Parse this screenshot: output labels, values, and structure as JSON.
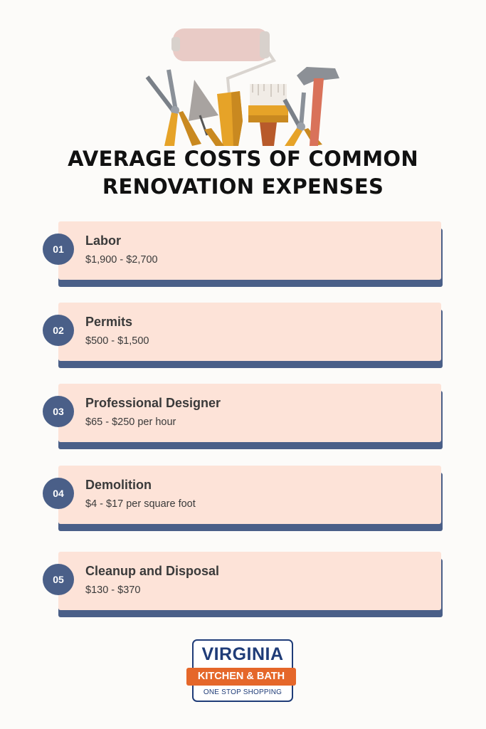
{
  "title": {
    "line1": "AVERAGE COSTS OF COMMON",
    "line2": "RENOVATION EXPENSES"
  },
  "items": [
    {
      "number": "01",
      "name": "Labor",
      "price": "$1,900 - $2,700"
    },
    {
      "number": "02",
      "name": "Permits",
      "price": "$500 - $1,500"
    },
    {
      "number": "03",
      "name": "Professional Designer",
      "price": "$65 - $250 per hour"
    },
    {
      "number": "04",
      "name": "Demolition",
      "price": "$4 - $17 per square foot"
    },
    {
      "number": "05",
      "name": "Cleanup and Disposal",
      "price": "$130 - $370"
    }
  ],
  "logo": {
    "line1": "VIRGINIA",
    "line2": "KITCHEN & BATH",
    "line3": "ONE STOP SHOPPING"
  },
  "illustration": {
    "icons": [
      "paint-roller-icon",
      "pliers-icon",
      "trowel-icon",
      "paint-brush-icon",
      "hammer-icon"
    ]
  },
  "colors": {
    "navy": "#4a5f88",
    "card": "#fde3d8",
    "background": "#fcfbf9",
    "logo_blue": "#1f3c78",
    "logo_orange": "#e5672a"
  }
}
